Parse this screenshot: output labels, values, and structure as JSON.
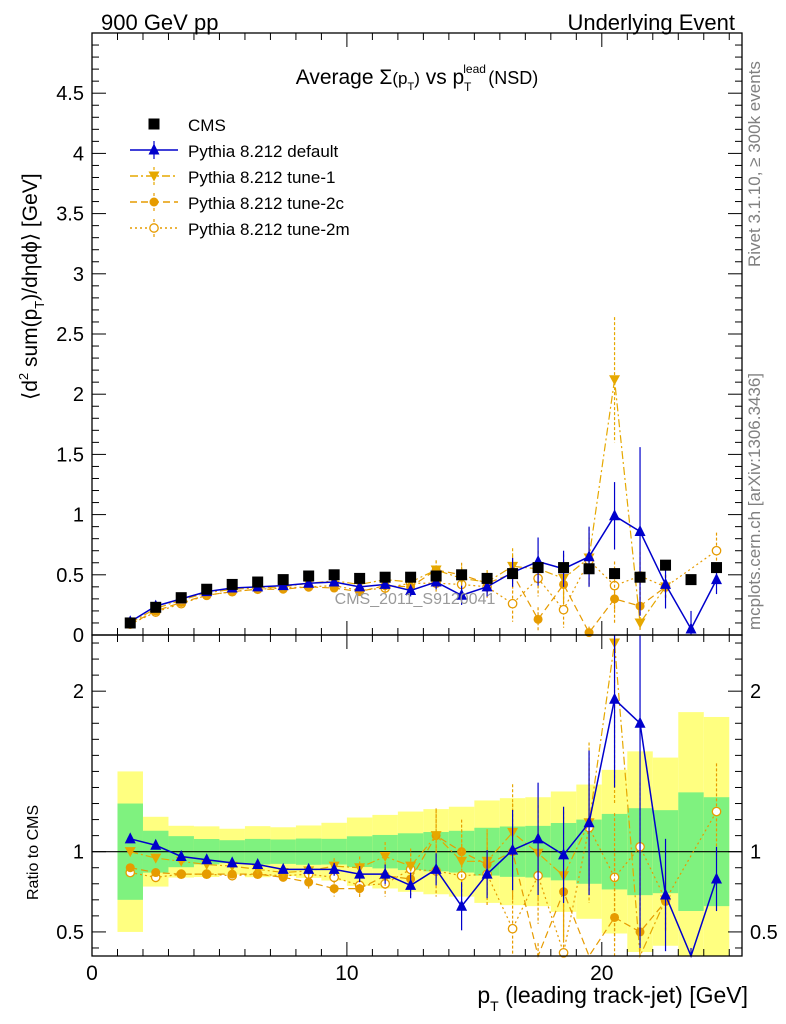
{
  "header": {
    "left": "900 GeV pp",
    "right": "Underlying Event"
  },
  "side_labels": {
    "rivet": "Rivet 3.1.10, ≥ 300k events",
    "mcplots": "mcplots.cern.ch [arXiv:1306.3436]"
  },
  "chart_data": {
    "type": "scatter",
    "title_parts": {
      "pre": "Average ",
      "sigma": "Σ",
      "mid": "(p",
      "sub1": "T",
      "close": ")",
      "vs": " vs p",
      "sup_lead": "lead",
      "sub2": "T",
      "post": " (NSD)"
    },
    "watermark": "CMS_2011_S9120041",
    "ylabel_upper_parts": {
      "a": "⟨d",
      "sup": "2",
      "b": " sum(p",
      "sub": "T",
      "c": ")/dηdϕ⟩ [GeV]"
    },
    "ylabel_lower": "Ratio to CMS",
    "xlabel_parts": {
      "p": "p",
      "sub": "T",
      "rest": " (leading track-jet) [GeV]"
    },
    "xlim": [
      0,
      25.5
    ],
    "ylim_upper": [
      0,
      5
    ],
    "ylim_lower": [
      0.35,
      2.35
    ],
    "x_ticks": [
      0,
      10,
      20
    ],
    "x_tick_labels": [
      "0",
      "10",
      "20"
    ],
    "y_ticks_upper": [
      0,
      0.5,
      1,
      1.5,
      2,
      2.5,
      3,
      3.5,
      4,
      4.5
    ],
    "y_tick_labels_upper": [
      "0",
      "0.5",
      "1",
      "1.5",
      "2",
      "2.5",
      "3",
      "3.5",
      "4",
      "4.5"
    ],
    "y_ticks_lower": [
      0.5,
      1,
      2
    ],
    "y_tick_labels_lower": [
      "0.5",
      "1",
      "2"
    ],
    "x": [
      1.5,
      2.5,
      3.5,
      4.5,
      5.5,
      6.5,
      7.5,
      8.5,
      9.5,
      10.5,
      11.5,
      12.5,
      13.5,
      14.5,
      15.5,
      16.5,
      17.5,
      18.5,
      19.5,
      20.5,
      21.5,
      22.5,
      23.5,
      24.5
    ],
    "cms": [
      0.1,
      0.23,
      0.31,
      0.38,
      0.42,
      0.44,
      0.46,
      0.49,
      0.5,
      0.47,
      0.48,
      0.48,
      0.49,
      0.5,
      0.47,
      0.51,
      0.56,
      0.56,
      0.55,
      0.51,
      0.48,
      0.58,
      0.46,
      0.56
    ],
    "cms_band_inner": [
      0.03,
      0.03,
      0.03,
      0.03,
      0.03,
      0.035,
      0.035,
      0.04,
      0.04,
      0.045,
      0.05,
      0.055,
      0.06,
      0.065,
      0.07,
      0.08,
      0.09,
      0.1,
      0.11,
      0.12,
      0.13,
      0.15,
      0.17,
      0.19
    ],
    "cms_band_outer": [
      0.05,
      0.05,
      0.05,
      0.06,
      0.06,
      0.07,
      0.07,
      0.08,
      0.09,
      0.1,
      0.11,
      0.12,
      0.13,
      0.14,
      0.15,
      0.17,
      0.19,
      0.21,
      0.23,
      0.26,
      0.3,
      0.34,
      0.4,
      0.47
    ],
    "series": [
      {
        "name": "Pythia 8.212 default",
        "color": "#0000cc",
        "marker": "triangle-up",
        "line": "solid",
        "values": [
          0.11,
          0.24,
          0.3,
          0.36,
          0.39,
          0.4,
          0.41,
          0.43,
          0.44,
          0.4,
          0.42,
          0.37,
          0.44,
          0.33,
          0.4,
          0.52,
          0.61,
          0.55,
          0.65,
          0.99,
          0.86,
          0.42,
          0.05,
          0.46
        ],
        "errors": [
          0.01,
          0.01,
          0.01,
          0.015,
          0.015,
          0.02,
          0.02,
          0.02,
          0.03,
          0.03,
          0.04,
          0.05,
          0.06,
          0.08,
          0.08,
          0.12,
          0.2,
          0.15,
          0.25,
          0.28,
          0.7,
          0.2,
          0.15,
          0.12
        ],
        "ratio": [
          1.08,
          1.04,
          0.97,
          0.95,
          0.93,
          0.92,
          0.89,
          0.89,
          0.89,
          0.86,
          0.86,
          0.79,
          0.89,
          0.66,
          0.86,
          1.01,
          1.08,
          0.98,
          1.18,
          1.95,
          1.8,
          0.73,
          0.1,
          0.83
        ],
        "ratio_errors": [
          0.01,
          0.01,
          0.01,
          0.015,
          0.015,
          0.02,
          0.02,
          0.03,
          0.04,
          0.05,
          0.06,
          0.08,
          0.1,
          0.15,
          0.15,
          0.25,
          0.35,
          0.3,
          0.45,
          0.55,
          1.4,
          0.35,
          0.3,
          0.2
        ]
      },
      {
        "name": "Pythia 8.212 tune-1",
        "color": "#e6a800",
        "marker": "triangle-down",
        "line": "dashdot",
        "values": [
          0.1,
          0.22,
          0.29,
          0.35,
          0.38,
          0.39,
          0.4,
          0.43,
          0.45,
          0.42,
          0.46,
          0.44,
          0.54,
          0.47,
          0.44,
          0.57,
          0.55,
          0.47,
          0.64,
          2.12,
          0.1,
          0.4,
          null,
          null
        ],
        "errors": [
          0.01,
          0.01,
          0.01,
          0.015,
          0.015,
          0.02,
          0.02,
          0.03,
          0.03,
          0.04,
          0.05,
          0.06,
          0.08,
          0.1,
          0.1,
          0.15,
          0.15,
          0.2,
          0.25,
          0.52,
          0.05,
          0.1,
          null,
          null
        ],
        "ratio": [
          1.0,
          0.96,
          0.94,
          0.92,
          0.91,
          0.89,
          0.87,
          0.88,
          0.91,
          0.9,
          0.97,
          0.91,
          1.1,
          0.94,
          0.94,
          1.12,
          0.99,
          0.85,
          1.18,
          2.3,
          0.2,
          0.7,
          null,
          null
        ],
        "ratio_errors": [
          0.01,
          0.01,
          0.01,
          0.02,
          0.02,
          0.03,
          0.03,
          0.04,
          0.05,
          0.07,
          0.09,
          0.11,
          0.17,
          0.2,
          0.2,
          0.3,
          0.3,
          0.4,
          0.5,
          1.0,
          0.15,
          0.2,
          null,
          null
        ]
      },
      {
        "name": "Pythia 8.212 tune-2c",
        "color": "#e69b00",
        "marker": "circle",
        "line": "dashed",
        "values": [
          0.09,
          0.2,
          0.27,
          0.33,
          0.36,
          0.38,
          0.38,
          0.4,
          0.39,
          0.36,
          0.41,
          0.4,
          0.54,
          0.5,
          0.43,
          0.51,
          0.13,
          0.42,
          0.02,
          0.3,
          0.24,
          0.4,
          null,
          null
        ],
        "errors": [
          0.01,
          0.01,
          0.01,
          0.015,
          0.015,
          0.02,
          0.02,
          0.03,
          0.03,
          0.04,
          0.05,
          0.06,
          0.08,
          0.1,
          0.1,
          0.15,
          0.1,
          0.15,
          0.05,
          0.2,
          0.2,
          0.1,
          null,
          null
        ],
        "ratio": [
          0.9,
          0.87,
          0.86,
          0.86,
          0.86,
          0.86,
          0.84,
          0.81,
          0.77,
          0.77,
          0.85,
          0.83,
          1.1,
          1.0,
          0.92,
          1.0,
          0.23,
          0.75,
          0.04,
          0.59,
          0.5,
          0.69,
          null,
          null
        ],
        "ratio_errors": [
          0.01,
          0.01,
          0.01,
          0.015,
          0.02,
          0.02,
          0.03,
          0.04,
          0.05,
          0.06,
          0.08,
          0.1,
          0.16,
          0.2,
          0.2,
          0.3,
          0.2,
          0.3,
          0.1,
          0.4,
          0.4,
          0.18,
          null,
          null
        ]
      },
      {
        "name": "Pythia 8.212 tune-2m",
        "color": "#e69b00",
        "marker": "open-circle",
        "line": "dotted",
        "values": [
          0.09,
          0.19,
          0.26,
          0.33,
          0.36,
          0.38,
          0.39,
          0.4,
          0.41,
          0.37,
          0.39,
          0.43,
          0.43,
          0.42,
          0.4,
          0.26,
          0.47,
          0.21,
          0.62,
          0.41,
          0.49,
          0.4,
          null,
          0.7
        ],
        "errors": [
          0.01,
          0.01,
          0.01,
          0.015,
          0.015,
          0.02,
          0.02,
          0.03,
          0.03,
          0.04,
          0.05,
          0.06,
          0.08,
          0.1,
          0.1,
          0.15,
          0.15,
          0.15,
          0.2,
          0.2,
          0.2,
          0.1,
          null,
          0.15
        ],
        "ratio": [
          0.87,
          0.84,
          0.86,
          0.86,
          0.85,
          0.86,
          0.85,
          0.86,
          0.84,
          0.79,
          0.8,
          0.89,
          0.88,
          0.85,
          0.86,
          0.52,
          0.85,
          0.37,
          1.15,
          0.84,
          1.03,
          0.7,
          null,
          1.25
        ],
        "ratio_errors": [
          0.01,
          0.01,
          0.01,
          0.015,
          0.02,
          0.02,
          0.03,
          0.04,
          0.05,
          0.06,
          0.08,
          0.1,
          0.16,
          0.2,
          0.2,
          0.3,
          0.3,
          0.3,
          0.4,
          0.4,
          0.4,
          0.18,
          null,
          0.3
        ]
      }
    ],
    "legend": [
      "CMS",
      "Pythia 8.212 default",
      "Pythia 8.212 tune-1",
      "Pythia 8.212 tune-2c",
      "Pythia 8.212 tune-2m"
    ],
    "legend_position": "top-left",
    "band_colors": {
      "inner": "#7ff27f",
      "outer": "#ffff80"
    }
  }
}
